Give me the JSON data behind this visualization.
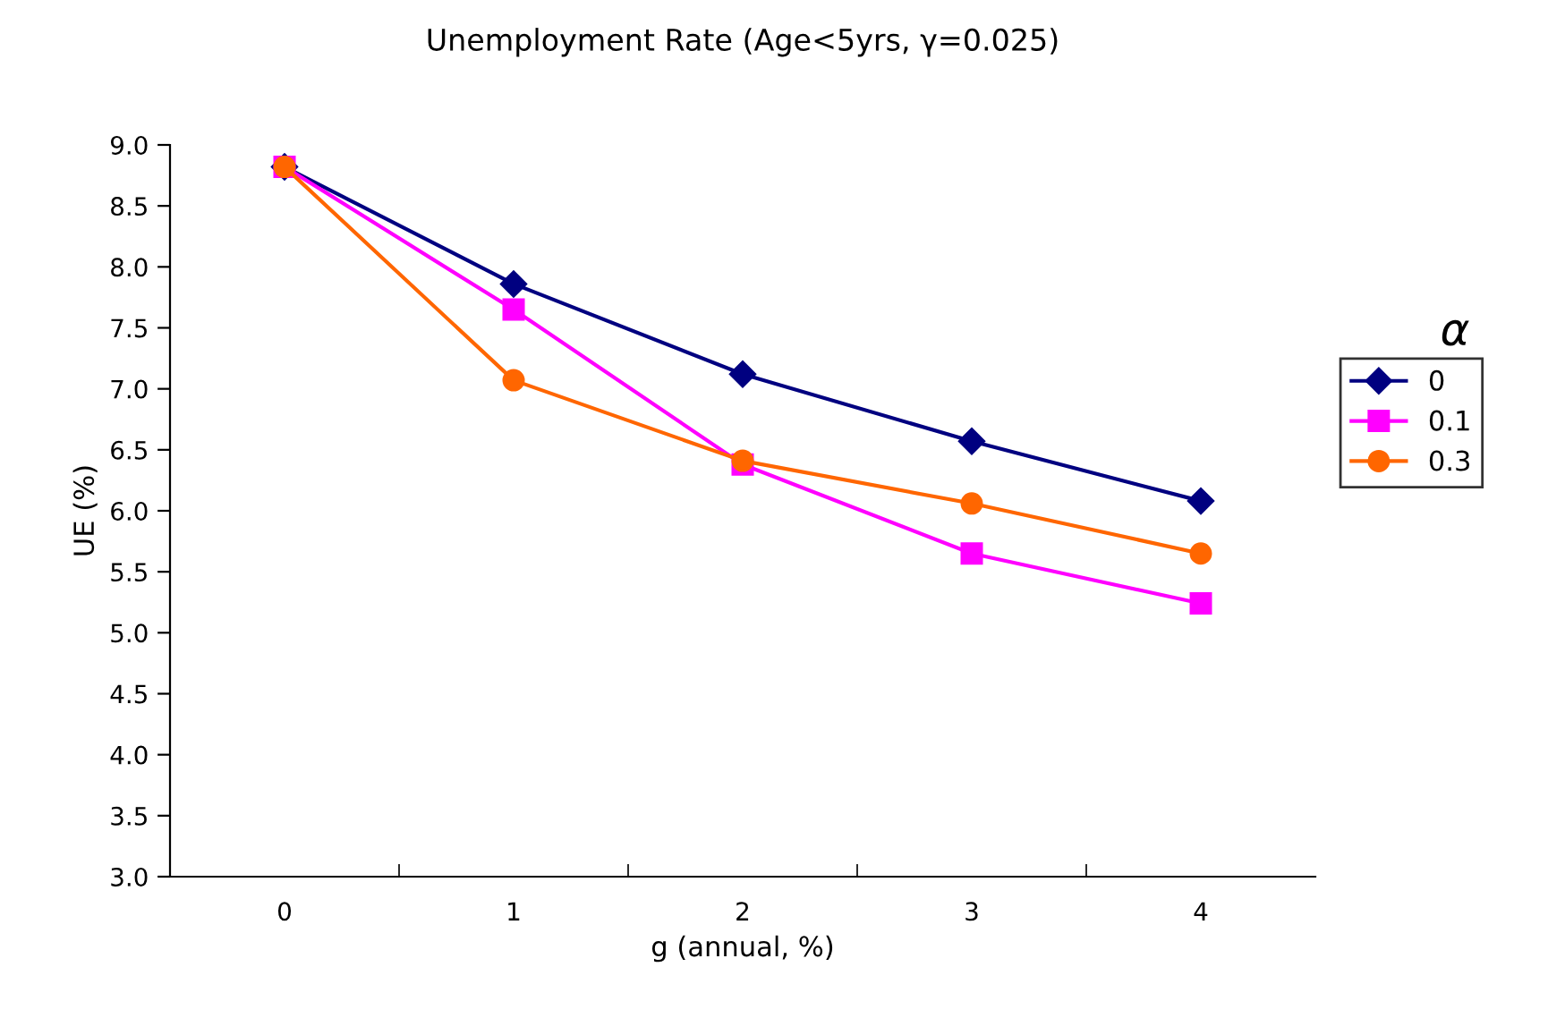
{
  "chart_data": {
    "type": "line",
    "title": "Unemployment Rate (Age<5yrs, γ=0.025)",
    "xlabel": "g (annual, %)",
    "ylabel": "UE (%)",
    "legend_title": "α",
    "categories": [
      "0",
      "1",
      "2",
      "3",
      "4"
    ],
    "series": [
      {
        "name": "0",
        "color": "#000080",
        "marker": "diamond",
        "values": [
          8.82,
          7.86,
          7.12,
          6.57,
          6.08
        ]
      },
      {
        "name": "0.1",
        "color": "#ff00ff",
        "marker": "square",
        "values": [
          8.82,
          7.65,
          6.38,
          5.65,
          5.24
        ]
      },
      {
        "name": "0.3",
        "color": "#ff6600",
        "marker": "circle",
        "values": [
          8.82,
          7.07,
          6.41,
          6.06,
          5.65
        ]
      }
    ],
    "ylim": [
      3.0,
      9.0
    ],
    "yticks": [
      {
        "value": 3,
        "label": "3.0"
      },
      {
        "value": 3.5,
        "label": "3.5"
      },
      {
        "value": 4,
        "label": "4.0"
      },
      {
        "value": 4.5,
        "label": "4.5"
      },
      {
        "value": 5,
        "label": "5.0"
      },
      {
        "value": 5.5,
        "label": "5.5"
      },
      {
        "value": 6,
        "label": "6.0"
      },
      {
        "value": 6.5,
        "label": "6.5"
      },
      {
        "value": 7,
        "label": "7.0"
      },
      {
        "value": 7.5,
        "label": "7.5"
      },
      {
        "value": 8,
        "label": "8.0"
      },
      {
        "value": 8.5,
        "label": "8.5"
      },
      {
        "value": 9,
        "label": "9.0"
      }
    ],
    "grid": false,
    "legend": "right",
    "line_style": "solid"
  }
}
